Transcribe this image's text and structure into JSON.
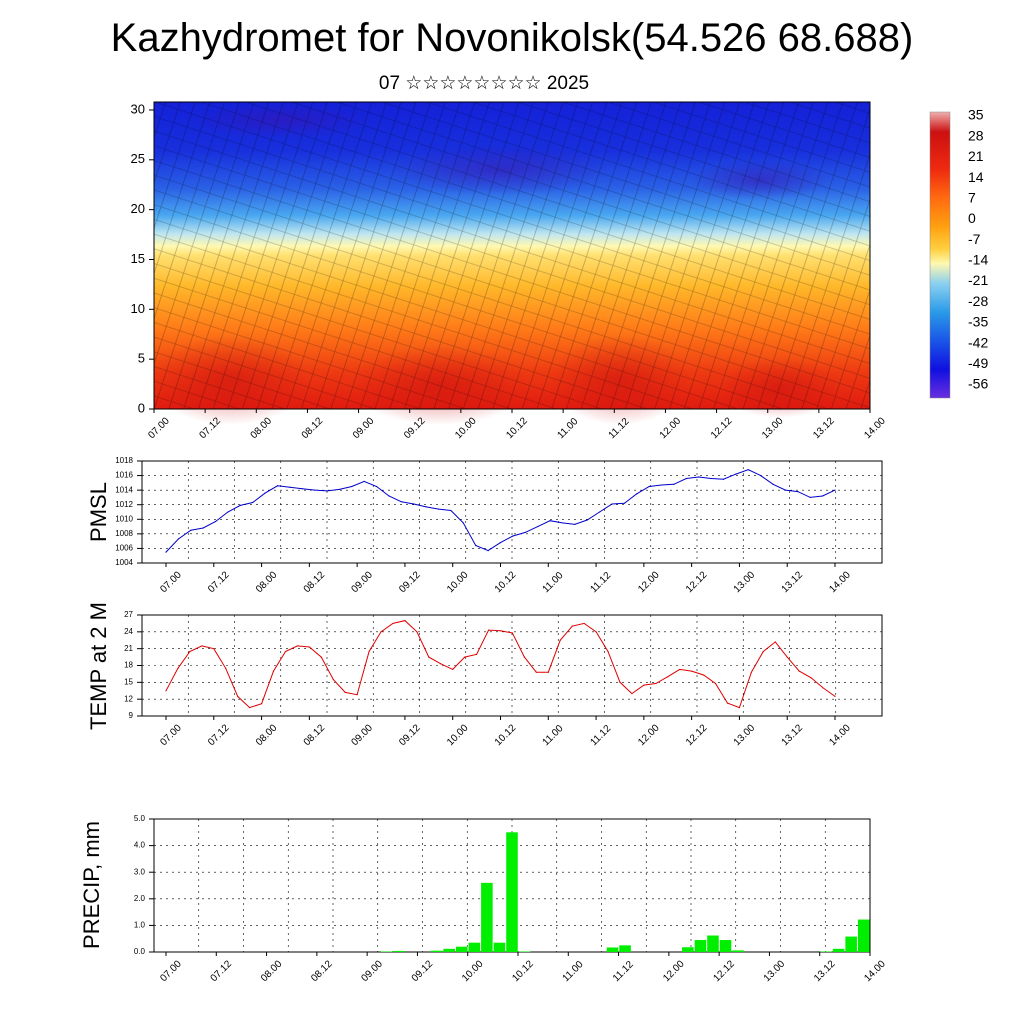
{
  "header": {
    "title": "Kazhydromet for Novonikolsk(54.526 68.688)",
    "subtitle": "07 ☆☆☆☆☆☆☆☆ 2025"
  },
  "colors": {
    "pmsl_line": "#0000cc",
    "temp_line": "#e00000",
    "precip_bar": "#00ee00",
    "cross_section_scale": [
      "#6a2ee0",
      "#1010e0",
      "#1a55e8",
      "#2a9ae8",
      "#8ad0f0",
      "#fff8b0",
      "#ffd040",
      "#ffa010",
      "#ff6a10",
      "#ee2a10",
      "#cc1010",
      "#f0b0b0"
    ]
  },
  "chart_data": [
    {
      "type": "heatmap",
      "name": "cross-section",
      "x_tick_labels": [
        "07.00",
        "07.12",
        "08.00",
        "08.12",
        "09.00",
        "09.12",
        "10.00",
        "10.12",
        "11.00",
        "11.12",
        "12.00",
        "12.12",
        "13.00",
        "13.12",
        "14.00"
      ],
      "y_tick_labels": [
        "0",
        "5",
        "10",
        "15",
        "20",
        "25",
        "30"
      ],
      "ylim": [
        0,
        30.8
      ],
      "colorbar_labels": [
        "35",
        "28",
        "21",
        "14",
        "7",
        "0",
        "-7",
        "-14",
        "-21",
        "-28",
        "-35",
        "-42",
        "-49",
        "-56"
      ]
    },
    {
      "type": "line",
      "ylabel": "PMSL",
      "x_tick_labels": [
        "07.00",
        "07.12",
        "08.00",
        "08.12",
        "09.00",
        "09.12",
        "10.00",
        "10.12",
        "11.00",
        "11.12",
        "12.00",
        "12.12",
        "13.00",
        "13.12",
        "14.00"
      ],
      "y_tick_labels": [
        "1018",
        "1016",
        "1014",
        "1012",
        "1010",
        "1008",
        "1006",
        "1004"
      ],
      "ylim": [
        1004,
        1018
      ],
      "values": [
        1005.5,
        1007.3,
        1008.5,
        1008.8,
        1009.7,
        1011.0,
        1011.9,
        1012.3,
        1013.6,
        1014.6,
        1014.4,
        1014.2,
        1014.0,
        1013.9,
        1014.1,
        1014.5,
        1015.2,
        1014.5,
        1013.2,
        1012.4,
        1012.1,
        1011.7,
        1011.4,
        1011.2,
        1009.5,
        1006.4,
        1005.7,
        1006.8,
        1007.7,
        1008.2,
        1009.0,
        1009.8,
        1009.5,
        1009.3,
        1009.9,
        1011.0,
        1012.1,
        1012.2,
        1013.5,
        1014.5,
        1014.7,
        1014.8,
        1015.6,
        1015.8,
        1015.6,
        1015.5,
        1016.2,
        1016.8,
        1016.0,
        1014.8,
        1014.0,
        1013.8,
        1013.0,
        1013.2,
        1014.0
      ]
    },
    {
      "type": "line",
      "ylabel": "TEMP at 2 M",
      "x_tick_labels": [
        "07.00",
        "07.12",
        "08.00",
        "08.12",
        "09.00",
        "09.12",
        "10.00",
        "10.12",
        "11.00",
        "11.12",
        "12.00",
        "12.12",
        "13.00",
        "13.12",
        "14.00"
      ],
      "y_tick_labels": [
        "27",
        "24",
        "21",
        "18",
        "15",
        "12",
        "9"
      ],
      "ylim": [
        9,
        27
      ],
      "values": [
        13.5,
        17.5,
        20.5,
        21.5,
        21.0,
        17.5,
        12.5,
        10.5,
        11.2,
        17.0,
        20.5,
        21.5,
        21.3,
        19.5,
        15.5,
        13.2,
        12.8,
        20.5,
        24.0,
        25.5,
        26.0,
        24.0,
        19.5,
        18.3,
        17.3,
        19.5,
        20.0,
        24.3,
        24.2,
        23.8,
        19.5,
        16.8,
        16.8,
        22.5,
        25.0,
        25.5,
        24.0,
        20.5,
        15.0,
        13.0,
        14.5,
        14.8,
        16.0,
        17.3,
        17.0,
        16.3,
        14.8,
        11.3,
        10.5,
        16.8,
        20.5,
        22.2,
        19.5,
        17.0,
        15.8,
        14.0,
        12.5
      ]
    },
    {
      "type": "bar",
      "ylabel": "PRECIP, mm",
      "x_tick_labels": [
        "07.00",
        "07.12",
        "08.00",
        "08.12",
        "09.00",
        "09.12",
        "10.00",
        "10.12",
        "11.00",
        "11.12",
        "12.00",
        "12.12",
        "13.00",
        "13.12",
        "14.00"
      ],
      "y_tick_labels": [
        "5.0",
        "4.0",
        "3.0",
        "2.0",
        "1.0",
        "0.0"
      ],
      "ylim": [
        0,
        5
      ],
      "values": [
        0,
        0,
        0,
        0,
        0,
        0,
        0,
        0,
        0,
        0,
        0,
        0,
        0,
        0,
        0,
        0,
        0,
        0,
        0.02,
        0.04,
        0,
        0,
        0.05,
        0.12,
        0.2,
        0.35,
        2.6,
        0.35,
        4.5,
        0.02,
        0,
        0,
        0,
        0,
        0,
        0,
        0.17,
        0.25,
        0,
        0,
        0,
        0,
        0.18,
        0.45,
        0.62,
        0.45,
        0.06,
        0,
        0,
        0,
        0,
        0,
        0,
        0.02,
        0.12,
        0.58,
        1.22
      ]
    }
  ]
}
